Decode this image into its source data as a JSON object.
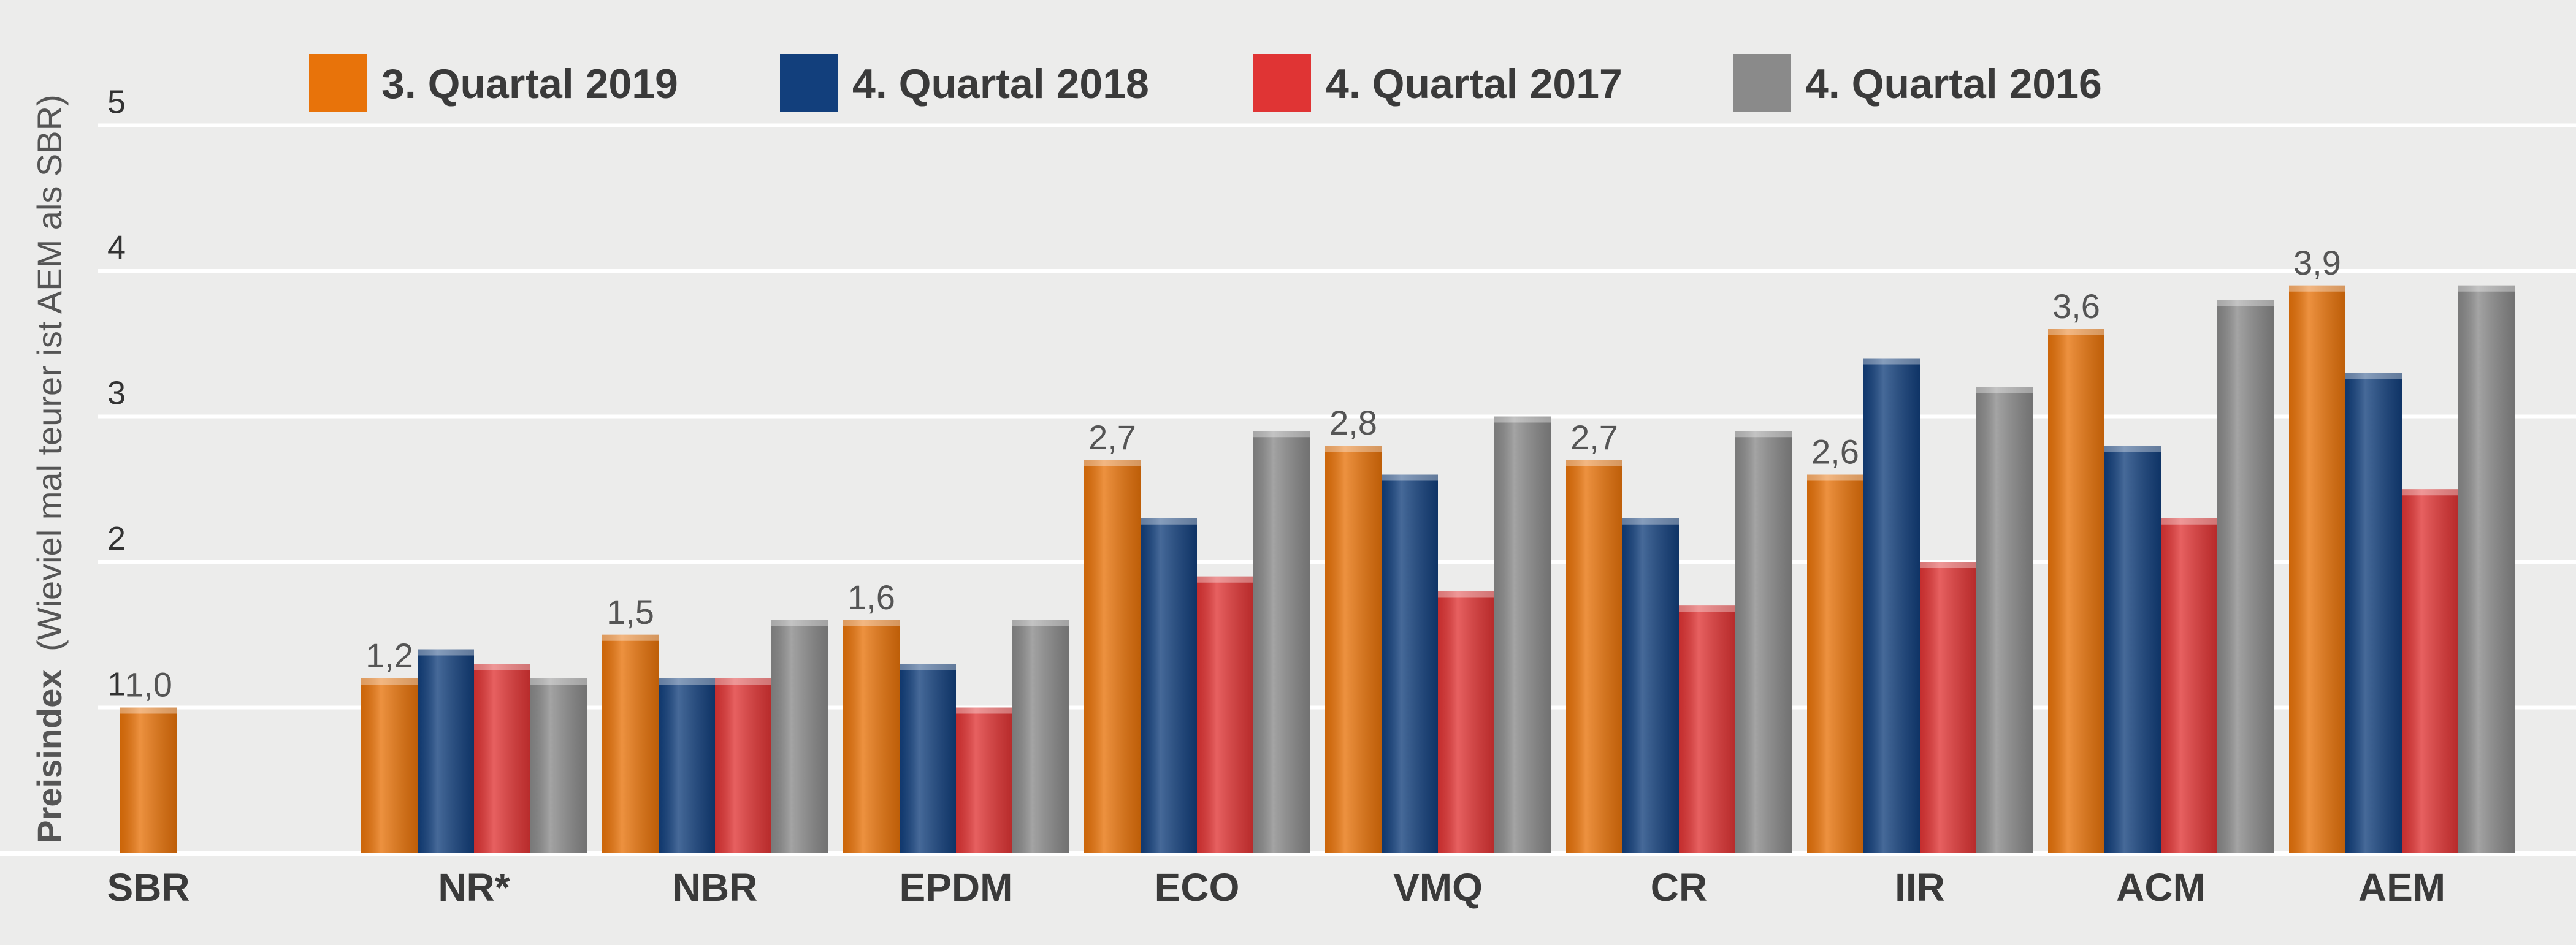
{
  "chart_data": {
    "type": "bar",
    "title": "",
    "xlabel": "",
    "ylabel": {
      "main": "Preisindex",
      "note": "(Wieviel mal teurer ist AEM als SBR)"
    },
    "ylim": [
      0,
      5
    ],
    "yticks": [
      1,
      2,
      3,
      4,
      5
    ],
    "grid": true,
    "legend_position": "top",
    "categories": [
      "SBR",
      "NR*",
      "NBR",
      "EPDM",
      "ECO",
      "VMQ",
      "CR",
      "IIR",
      "ACM",
      "AEM"
    ],
    "series": [
      {
        "name": "3. Quartal 2019",
        "color": "#e8730a",
        "values": [
          1.0,
          1.2,
          1.5,
          1.6,
          2.7,
          2.8,
          2.7,
          2.6,
          3.6,
          3.9
        ]
      },
      {
        "name": "4. Quartal 2018",
        "color": "#123f7c",
        "values": [
          null,
          1.4,
          1.2,
          1.3,
          2.3,
          2.6,
          2.3,
          3.4,
          2.8,
          3.3
        ]
      },
      {
        "name": "4. Quartal 2017",
        "color": "#e03434",
        "values": [
          null,
          1.3,
          1.2,
          1.0,
          1.9,
          1.8,
          1.7,
          2.0,
          2.3,
          2.5
        ]
      },
      {
        "name": "4. Quartal 2016",
        "color": "#8a8a8a",
        "values": [
          null,
          1.2,
          1.6,
          1.6,
          2.9,
          3.0,
          2.9,
          3.2,
          3.8,
          3.9
        ]
      }
    ],
    "data_labels": [
      "1,0",
      "1,2",
      "1,5",
      "1,6",
      "2,7",
      "2,8",
      "2,7",
      "2,6",
      "3,6",
      "3,9"
    ]
  }
}
